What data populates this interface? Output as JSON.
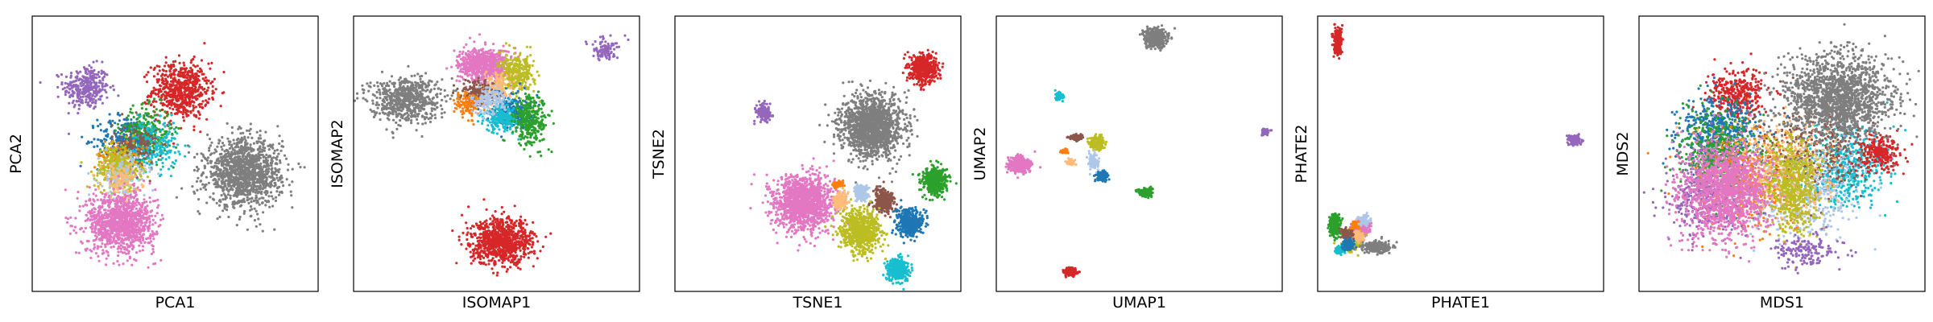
{
  "palette": {
    "blue": "#1f77b4",
    "orange": "#ff7f0e",
    "green": "#2ca02c",
    "red": "#d62728",
    "purple": "#9467bd",
    "brown": "#8c564b",
    "pink": "#e377c2",
    "gray": "#7f7f7f",
    "olive": "#bcbd22",
    "cyan": "#17becf",
    "lightblue": "#aec7e8",
    "peach": "#ffbb78"
  },
  "chart_data": [
    {
      "type": "scatter",
      "xlabel": "PCA1",
      "ylabel": "PCA2",
      "xlim": [
        0,
        100
      ],
      "ylim": [
        0,
        100
      ],
      "grid": false,
      "ticks": false,
      "clusters": [
        {
          "color": "purple",
          "cx": 19,
          "cy": 74,
          "rx": 8,
          "ry": 8,
          "n": 320
        },
        {
          "color": "red",
          "cx": 52,
          "cy": 73,
          "rx": 10,
          "ry": 10,
          "n": 650
        },
        {
          "color": "blue",
          "cx": 33,
          "cy": 55,
          "rx": 10,
          "ry": 9,
          "n": 300
        },
        {
          "color": "green",
          "cx": 40,
          "cy": 58,
          "rx": 9,
          "ry": 9,
          "n": 260
        },
        {
          "color": "cyan",
          "cx": 42,
          "cy": 53,
          "rx": 9,
          "ry": 9,
          "n": 240
        },
        {
          "color": "brown",
          "cx": 36,
          "cy": 52,
          "rx": 8,
          "ry": 9,
          "n": 160
        },
        {
          "color": "orange",
          "cx": 30,
          "cy": 48,
          "rx": 7,
          "ry": 7,
          "n": 120
        },
        {
          "color": "olive",
          "cx": 30,
          "cy": 45,
          "rx": 8,
          "ry": 8,
          "n": 350
        },
        {
          "color": "lightblue",
          "cx": 32,
          "cy": 42,
          "rx": 8,
          "ry": 8,
          "n": 160
        },
        {
          "color": "peach",
          "cx": 31,
          "cy": 40,
          "rx": 7,
          "ry": 6,
          "n": 100
        },
        {
          "color": "gray",
          "cx": 74,
          "cy": 43,
          "rx": 13,
          "ry": 12,
          "n": 1300
        },
        {
          "color": "pink",
          "cx": 31,
          "cy": 25,
          "rx": 12,
          "ry": 11,
          "n": 1100
        }
      ]
    },
    {
      "type": "scatter",
      "xlabel": "ISOMAP1",
      "ylabel": "ISOMAP2",
      "xlim": [
        0,
        100
      ],
      "ylim": [
        0,
        100
      ],
      "grid": false,
      "ticks": false,
      "clusters": [
        {
          "color": "gray",
          "cx": 18,
          "cy": 70,
          "rx": 12,
          "ry": 8,
          "n": 650
        },
        {
          "color": "pink",
          "cx": 46,
          "cy": 82,
          "rx": 9,
          "ry": 6,
          "n": 700
        },
        {
          "color": "olive",
          "cx": 57,
          "cy": 79,
          "rx": 6,
          "ry": 7,
          "n": 320
        },
        {
          "color": "peach",
          "cx": 50,
          "cy": 74,
          "rx": 5,
          "ry": 5,
          "n": 150
        },
        {
          "color": "blue",
          "cx": 55,
          "cy": 66,
          "rx": 7,
          "ry": 6,
          "n": 260
        },
        {
          "color": "cyan",
          "cx": 52,
          "cy": 63,
          "rx": 6,
          "ry": 5,
          "n": 220
        },
        {
          "color": "green",
          "cx": 62,
          "cy": 62,
          "rx": 6,
          "ry": 9,
          "n": 300
        },
        {
          "color": "brown",
          "cx": 43,
          "cy": 72,
          "rx": 6,
          "ry": 5,
          "n": 130
        },
        {
          "color": "orange",
          "cx": 40,
          "cy": 68,
          "rx": 5,
          "ry": 5,
          "n": 110
        },
        {
          "color": "lightblue",
          "cx": 47,
          "cy": 69,
          "rx": 6,
          "ry": 5,
          "n": 140
        },
        {
          "color": "purple",
          "cx": 88,
          "cy": 88,
          "rx": 5,
          "ry": 4,
          "n": 90
        },
        {
          "color": "red",
          "cx": 52,
          "cy": 18,
          "rx": 11,
          "ry": 8,
          "n": 900
        }
      ]
    },
    {
      "type": "scatter",
      "xlabel": "TSNE1",
      "ylabel": "TSNE2",
      "xlim": [
        0,
        100
      ],
      "ylim": [
        0,
        100
      ],
      "grid": false,
      "ticks": false,
      "clusters": [
        {
          "color": "red",
          "cx": 87,
          "cy": 81,
          "rx": 4.6,
          "ry": 5,
          "n": 500
        },
        {
          "color": "gray",
          "cx": 69,
          "cy": 60,
          "rx": 10.5,
          "ry": 11,
          "n": 1500
        },
        {
          "color": "purple",
          "cx": 31,
          "cy": 65,
          "rx": 2.5,
          "ry": 3,
          "n": 160
        },
        {
          "color": "pink",
          "cx": 45,
          "cy": 32,
          "rx": 10,
          "ry": 10,
          "n": 1400
        },
        {
          "color": "green",
          "cx": 91,
          "cy": 40,
          "rx": 4.4,
          "ry": 5,
          "n": 450
        },
        {
          "color": "brown",
          "cx": 73,
          "cy": 33,
          "rx": 3.5,
          "ry": 4,
          "n": 320
        },
        {
          "color": "olive",
          "cx": 65,
          "cy": 22,
          "rx": 7,
          "ry": 7.5,
          "n": 700
        },
        {
          "color": "blue",
          "cx": 82,
          "cy": 25,
          "rx": 4.5,
          "ry": 5,
          "n": 420
        },
        {
          "color": "cyan",
          "cx": 78,
          "cy": 8,
          "rx": 3.8,
          "ry": 4,
          "n": 360
        },
        {
          "color": "lightblue",
          "cx": 65,
          "cy": 36,
          "rx": 2.5,
          "ry": 3,
          "n": 160
        },
        {
          "color": "peach",
          "cx": 58,
          "cy": 33,
          "rx": 2.5,
          "ry": 3,
          "n": 160
        },
        {
          "color": "orange",
          "cx": 57,
          "cy": 39,
          "rx": 1.8,
          "ry": 1.2,
          "n": 60
        }
      ]
    },
    {
      "type": "scatter",
      "xlabel": "UMAP1",
      "ylabel": "UMAP2",
      "xlim": [
        0,
        100
      ],
      "ylim": [
        0,
        100
      ],
      "grid": false,
      "ticks": false,
      "clusters": [
        {
          "color": "gray",
          "cx": 56,
          "cy": 92,
          "rx": 3.8,
          "ry": 3,
          "n": 500
        },
        {
          "color": "cyan",
          "cx": 22,
          "cy": 71,
          "rx": 1.3,
          "ry": 1.5,
          "n": 70
        },
        {
          "color": "purple",
          "cx": 94,
          "cy": 58,
          "rx": 1.3,
          "ry": 1.2,
          "n": 50
        },
        {
          "color": "brown",
          "cx": 28,
          "cy": 56,
          "rx": 2.5,
          "ry": 1,
          "n": 90
        },
        {
          "color": "olive",
          "cx": 35,
          "cy": 54,
          "rx": 2.7,
          "ry": 2.3,
          "n": 230
        },
        {
          "color": "orange",
          "cx": 24,
          "cy": 51,
          "rx": 1.2,
          "ry": 0.7,
          "n": 45
        },
        {
          "color": "peach",
          "cx": 26,
          "cy": 47,
          "rx": 1.3,
          "ry": 1,
          "n": 60
        },
        {
          "color": "pink",
          "cx": 8,
          "cy": 46,
          "rx": 3.5,
          "ry": 3,
          "n": 420
        },
        {
          "color": "lightblue",
          "cx": 34,
          "cy": 47,
          "rx": 2,
          "ry": 3,
          "n": 90
        },
        {
          "color": "blue",
          "cx": 37,
          "cy": 42,
          "rx": 1.8,
          "ry": 1.7,
          "n": 150
        },
        {
          "color": "green",
          "cx": 52,
          "cy": 36,
          "rx": 2.3,
          "ry": 1.4,
          "n": 160
        },
        {
          "color": "red",
          "cx": 26,
          "cy": 7,
          "rx": 2.2,
          "ry": 1.5,
          "n": 160
        }
      ]
    },
    {
      "type": "scatter",
      "xlabel": "PHATE1",
      "ylabel": "PHATE2",
      "xlim": [
        0,
        100
      ],
      "ylim": [
        0,
        100
      ],
      "grid": false,
      "ticks": false,
      "clusters": [
        {
          "color": "red",
          "cx": 7,
          "cy": 91,
          "rx": 1.3,
          "ry": 4.5,
          "n": 260
        },
        {
          "color": "purple",
          "cx": 90,
          "cy": 55,
          "rx": 3,
          "ry": 2,
          "n": 90
        },
        {
          "color": "green",
          "cx": 6,
          "cy": 24,
          "rx": 2,
          "ry": 4,
          "n": 260
        },
        {
          "color": "pink",
          "cx": 15,
          "cy": 23,
          "rx": 3,
          "ry": 2.5,
          "n": 260
        },
        {
          "color": "olive",
          "cx": 12,
          "cy": 18,
          "rx": 3,
          "ry": 3,
          "n": 240
        },
        {
          "color": "cyan",
          "cx": 8,
          "cy": 15,
          "rx": 1.5,
          "ry": 1.5,
          "n": 130
        },
        {
          "color": "peach",
          "cx": 14,
          "cy": 20,
          "rx": 2,
          "ry": 2,
          "n": 100
        },
        {
          "color": "brown",
          "cx": 10,
          "cy": 21,
          "rx": 2,
          "ry": 2,
          "n": 100
        },
        {
          "color": "orange",
          "cx": 13,
          "cy": 24,
          "rx": 1.5,
          "ry": 1.5,
          "n": 70
        },
        {
          "color": "blue",
          "cx": 11,
          "cy": 17,
          "rx": 2,
          "ry": 2,
          "n": 110
        },
        {
          "color": "lightblue",
          "cx": 16,
          "cy": 26,
          "rx": 2,
          "ry": 2,
          "n": 70
        },
        {
          "color": "gray",
          "cx": 21,
          "cy": 16,
          "rx": 5,
          "ry": 2,
          "n": 230
        }
      ]
    },
    {
      "type": "scatter",
      "xlabel": "MDS1",
      "ylabel": "MDS2",
      "xlim": [
        0,
        100
      ],
      "ylim": [
        0,
        100
      ],
      "grid": false,
      "ticks": false,
      "clusters": [
        {
          "color": "red",
          "cx": 34,
          "cy": 72,
          "rx": 10,
          "ry": 9,
          "n": 350
        },
        {
          "color": "blue",
          "cx": 28,
          "cy": 58,
          "rx": 13,
          "ry": 13,
          "n": 500
        },
        {
          "color": "cyan",
          "cx": 72,
          "cy": 45,
          "rx": 15,
          "ry": 14,
          "n": 500
        },
        {
          "color": "green",
          "cx": 28,
          "cy": 50,
          "rx": 14,
          "ry": 15,
          "n": 500
        },
        {
          "color": "brown",
          "cx": 62,
          "cy": 52,
          "rx": 18,
          "ry": 16,
          "n": 420
        },
        {
          "color": "orange",
          "cx": 42,
          "cy": 40,
          "rx": 20,
          "ry": 18,
          "n": 420
        },
        {
          "color": "lightblue",
          "cx": 58,
          "cy": 35,
          "rx": 18,
          "ry": 16,
          "n": 400
        },
        {
          "color": "peach",
          "cx": 50,
          "cy": 45,
          "rx": 20,
          "ry": 18,
          "n": 360
        },
        {
          "color": "red",
          "cx": 84,
          "cy": 50,
          "rx": 7,
          "ry": 6,
          "n": 240
        },
        {
          "color": "olive",
          "cx": 54,
          "cy": 38,
          "rx": 9,
          "ry": 17,
          "n": 550
        },
        {
          "color": "purple",
          "cx": 24,
          "cy": 35,
          "rx": 13,
          "ry": 17,
          "n": 380
        },
        {
          "color": "purple",
          "cx": 58,
          "cy": 15,
          "rx": 12,
          "ry": 6,
          "n": 160
        },
        {
          "color": "gray",
          "cx": 70,
          "cy": 70,
          "rx": 19,
          "ry": 15,
          "n": 1600
        },
        {
          "color": "pink",
          "cx": 30,
          "cy": 37,
          "rx": 15,
          "ry": 17,
          "n": 1500
        }
      ]
    }
  ]
}
